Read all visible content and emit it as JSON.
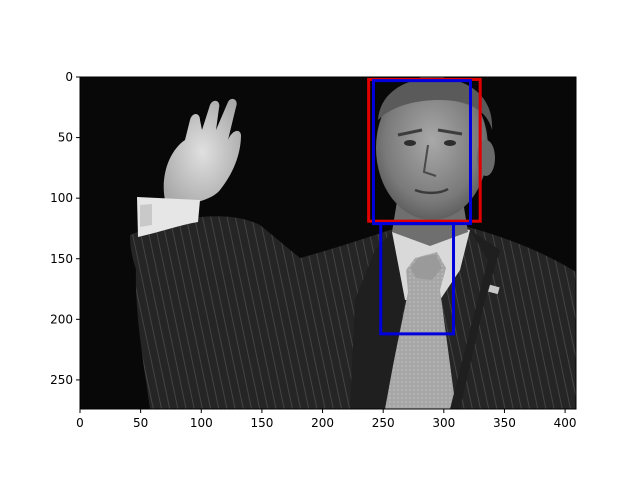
{
  "axes": {
    "xlim": [
      0,
      409
    ],
    "ylim": [
      274,
      0
    ],
    "x_ticks": [
      {
        "value": 0,
        "label": "0"
      },
      {
        "value": 50,
        "label": "50"
      },
      {
        "value": 100,
        "label": "100"
      },
      {
        "value": 150,
        "label": "150"
      },
      {
        "value": 200,
        "label": "200"
      },
      {
        "value": 250,
        "label": "250"
      },
      {
        "value": 300,
        "label": "300"
      },
      {
        "value": 350,
        "label": "350"
      },
      {
        "value": 400,
        "label": "400"
      }
    ],
    "y_ticks": [
      {
        "value": 0,
        "label": "0"
      },
      {
        "value": 50,
        "label": "50"
      },
      {
        "value": 100,
        "label": "100"
      },
      {
        "value": 150,
        "label": "150"
      },
      {
        "value": 200,
        "label": "200"
      },
      {
        "value": 250,
        "label": "250"
      }
    ]
  },
  "image": {
    "subject": "grayscale photo of a man in a pinstripe suit raising his right hand",
    "width": 409,
    "height": 274
  },
  "boxes": [
    {
      "name": "face-box-red",
      "color": "#e00000",
      "x0": 238,
      "y0": 2,
      "x1": 330,
      "y1": 119
    },
    {
      "name": "face-box-blue",
      "color": "#0000dd",
      "x0": 242,
      "y0": 3,
      "x1": 322,
      "y1": 121
    },
    {
      "name": "tie-box-blue",
      "color": "#0000dd",
      "x0": 248,
      "y0": 121,
      "x1": 308,
      "y1": 212
    }
  ]
}
